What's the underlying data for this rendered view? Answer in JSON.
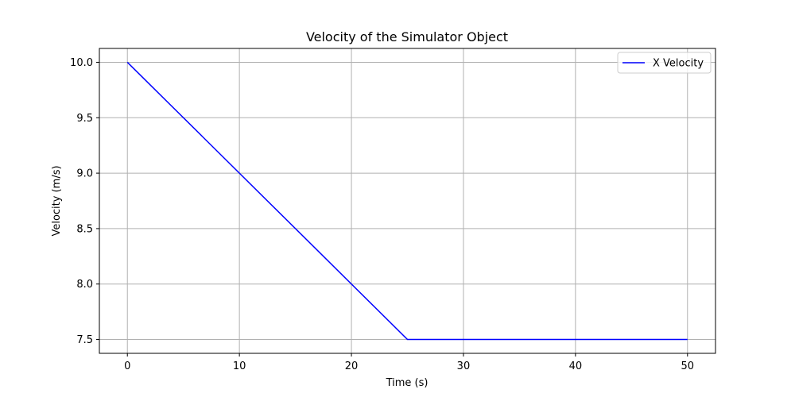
{
  "chart_data": {
    "type": "line",
    "title": "Velocity of the Simulator Object",
    "xlabel": "Time (s)",
    "ylabel": "Velocity (m/s)",
    "xlim": [
      -2.5,
      52.5
    ],
    "ylim": [
      7.375,
      10.125
    ],
    "x_ticks": [
      0,
      10,
      20,
      30,
      40,
      50
    ],
    "x_tick_labels": [
      "0",
      "10",
      "20",
      "30",
      "40",
      "50"
    ],
    "y_ticks": [
      7.5,
      8.0,
      8.5,
      9.0,
      9.5,
      10.0
    ],
    "y_tick_labels": [
      "7.5",
      "8.0",
      "8.5",
      "9.0",
      "9.5",
      "10.0"
    ],
    "grid": true,
    "legend_position": "top-right",
    "series": [
      {
        "name": "X Velocity",
        "color": "#0000ff",
        "x": [
          0,
          25,
          50
        ],
        "y": [
          10.0,
          7.5,
          7.5
        ]
      }
    ]
  }
}
